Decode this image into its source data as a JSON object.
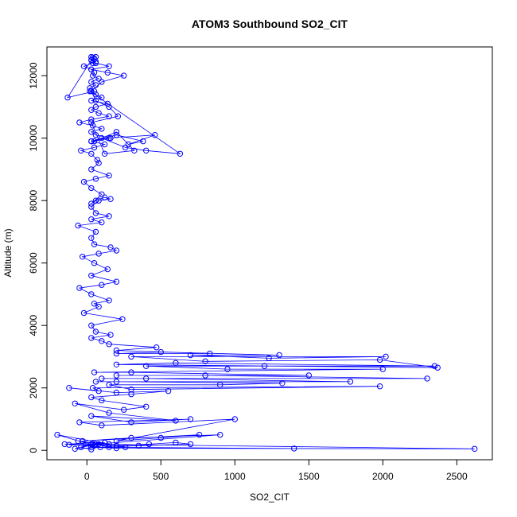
{
  "chart_data": {
    "type": "scatter",
    "title": "ATOM3 Southbound SO2_CIT",
    "xlabel": "SO2_CIT",
    "ylabel": "Altitude (m)",
    "xlim": [
      -270,
      2740
    ],
    "ylim": [
      -300,
      12920
    ],
    "xticks": [
      0,
      500,
      1000,
      1500,
      2000,
      2500
    ],
    "xtick_labels": [
      "0",
      "500",
      "1000",
      "1500",
      "2000",
      "2500"
    ],
    "yticks": [
      0,
      2000,
      4000,
      6000,
      8000,
      10000,
      12000
    ],
    "ytick_labels": [
      "0",
      "2000",
      "4000",
      "6000",
      "8000",
      "10000",
      "12000"
    ],
    "grid": false,
    "connected": true,
    "marker": "open-circle",
    "color": "#0000ff",
    "series": [
      {
        "x": [
          30,
          -40,
          80,
          -120,
          50,
          -200,
          150,
          260,
          -60,
          40,
          120,
          -150,
          200,
          420,
          600,
          700,
          350,
          90,
          -80,
          30,
          2620,
          200,
          30,
          1400,
          150,
          60,
          900,
          300,
          -30,
          760,
          500,
          200,
          1000,
          100,
          -50,
          700,
          300,
          30,
          600,
          150,
          -80,
          250,
          400,
          100,
          30,
          300,
          550,
          200,
          -120,
          80,
          40,
          1980,
          300,
          150,
          900,
          1320,
          200,
          60,
          1780,
          400,
          100,
          2300,
          800,
          200,
          1500,
          300,
          50,
          2000,
          950,
          400,
          1200,
          2350,
          600,
          200,
          2370,
          1980,
          800,
          300,
          2020,
          1230,
          700,
          1300,
          500,
          200,
          830,
          200,
          470,
          150,
          100,
          30,
          160,
          60,
          30,
          240,
          -20,
          80,
          50,
          150,
          30,
          -50,
          100,
          200,
          30,
          140,
          50,
          -30,
          80,
          200,
          160,
          50,
          30,
          60,
          -60,
          100,
          30,
          150,
          60,
          30,
          80,
          160,
          120,
          60,
          30,
          100,
          30,
          -20,
          60,
          150,
          30,
          80,
          70,
          30,
          -40,
          50,
          120,
          30,
          160,
          60,
          30,
          100,
          40,
          -50,
          30,
          150,
          80,
          30,
          60,
          140,
          30,
          100,
          60,
          20,
          630,
          400,
          260,
          100,
          30,
          200,
          380,
          280,
          460,
          150,
          50,
          200,
          320,
          120,
          30,
          210,
          150,
          60,
          30,
          100,
          250,
          140,
          30,
          150,
          60,
          30,
          -130,
          50,
          20,
          60,
          30,
          80,
          40,
          50,
          30,
          -20,
          40,
          60,
          30,
          50,
          40,
          30,
          60
        ],
        "y": [
          30,
          100,
          200,
          180,
          150,
          500,
          200,
          100,
          300,
          200,
          250,
          200,
          150,
          200,
          250,
          200,
          150,
          100,
          50,
          200,
          50,
          70,
          100,
          60,
          100,
          200,
          500,
          400,
          300,
          500,
          400,
          300,
          1000,
          800,
          900,
          1000,
          900,
          1100,
          950,
          1200,
          1500,
          1300,
          1400,
          1600,
          1700,
          1800,
          1900,
          1850,
          2000,
          1900,
          2000,
          2050,
          1950,
          2100,
          2100,
          2150,
          2200,
          2200,
          2200,
          2300,
          2300,
          2300,
          2400,
          2400,
          2400,
          2500,
          2500,
          2600,
          2600,
          2700,
          2700,
          2700,
          2800,
          2750,
          2650,
          2900,
          2850,
          3000,
          3000,
          2950,
          3050,
          3050,
          3150,
          3100,
          3100,
          3200,
          3300,
          3400,
          3500,
          3600,
          3700,
          3800,
          4000,
          4200,
          4400,
          4600,
          4700,
          4800,
          5000,
          5200,
          5300,
          5400,
          5600,
          5800,
          6000,
          6200,
          6300,
          6400,
          6500,
          6600,
          6800,
          7000,
          7200,
          7300,
          7400,
          7500,
          7600,
          7800,
          8000,
          8050,
          8100,
          8000,
          7900,
          8200,
          8400,
          8600,
          8700,
          8800,
          9000,
          9200,
          9300,
          9500,
          9600,
          9700,
          9800,
          9900,
          10000,
          10100,
          10200,
          10300,
          10400,
          10500,
          10600,
          10700,
          10800,
          10900,
          11000,
          11100,
          11200,
          11300,
          11400,
          11500,
          9500,
          9600,
          9700,
          10000,
          9900,
          10100,
          9900,
          9800,
          10100,
          10000,
          9900,
          10200,
          9600,
          9500,
          10500,
          10700,
          11000,
          11200,
          11500,
          11800,
          12000,
          12100,
          12200,
          12300,
          12400,
          12500,
          11300,
          11500,
          11600,
          11700,
          11800,
          11900,
          12000,
          12100,
          12200,
          12300,
          12400,
          12450,
          12500,
          12550,
          12580,
          12600,
          12600
        ]
      }
    ]
  }
}
